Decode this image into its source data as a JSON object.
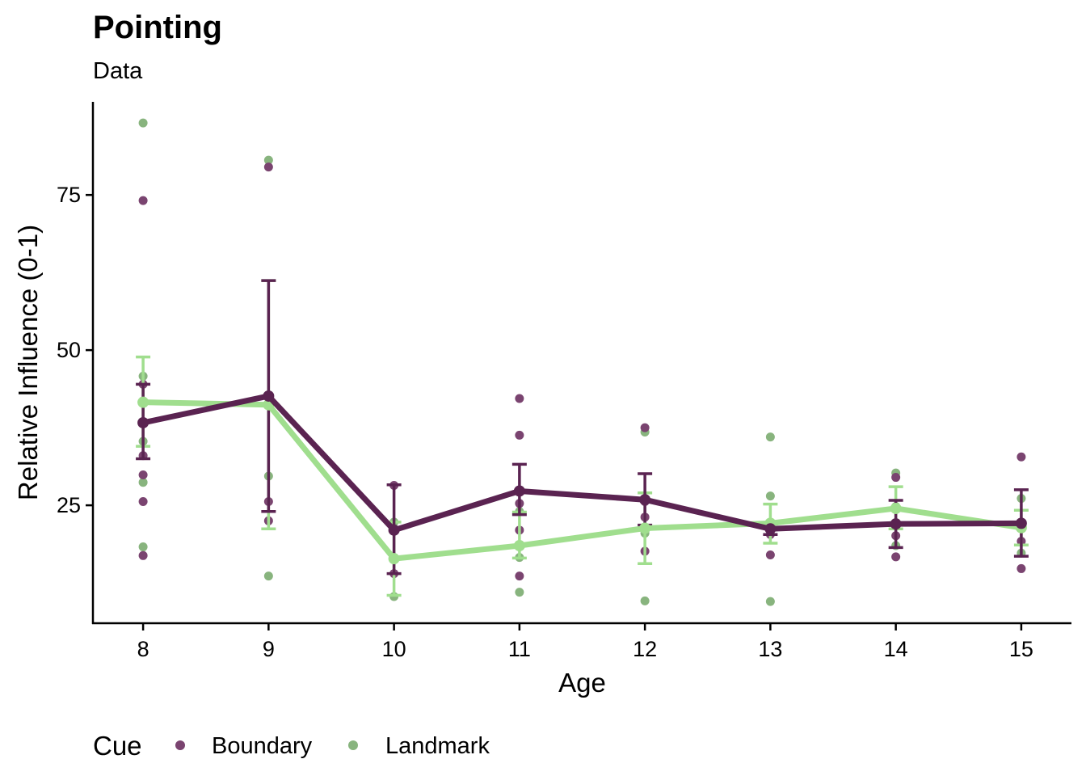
{
  "chart_data": {
    "type": "line",
    "title": "Pointing",
    "subtitle": "Data",
    "xlabel": "Age",
    "ylabel": "Relative Influence (0-1)",
    "x": [
      8,
      9,
      10,
      11,
      12,
      13,
      14,
      15
    ],
    "xlim": [
      7.6,
      15.4
    ],
    "ylim": [
      6,
      90
    ],
    "yticks": [
      25,
      50,
      75
    ],
    "grid": false,
    "legend": {
      "title": "Cue",
      "position": "bottom-left"
    },
    "series": [
      {
        "name": "Boundary",
        "color": "#5a2351",
        "point_color": "#7a4470",
        "mean": [
          38.3,
          42.6,
          21.0,
          27.3,
          25.9,
          21.2,
          22.0,
          22.1
        ],
        "error_low": [
          32.5,
          24.0,
          14.0,
          23.5,
          21.8,
          20.3,
          18.2,
          16.8
        ],
        "error_high": [
          44.5,
          61.2,
          28.3,
          31.6,
          30.1,
          22.0,
          25.8,
          27.5
        ],
        "points": [
          [
            8,
            74.1
          ],
          [
            8,
            44.5
          ],
          [
            8,
            41.8
          ],
          [
            8,
            33.0
          ],
          [
            8,
            29.9
          ],
          [
            8,
            25.6
          ],
          [
            8,
            16.9
          ],
          [
            9,
            79.5
          ],
          [
            9,
            25.6
          ],
          [
            9,
            22.5
          ],
          [
            10,
            28.2
          ],
          [
            10,
            14.0
          ],
          [
            11,
            42.2
          ],
          [
            11,
            36.3
          ],
          [
            11,
            25.3
          ],
          [
            11,
            21.0
          ],
          [
            11,
            13.6
          ],
          [
            12,
            37.5
          ],
          [
            12,
            25.6
          ],
          [
            12,
            23.1
          ],
          [
            12,
            17.6
          ],
          [
            13,
            21.4
          ],
          [
            13,
            20.3
          ],
          [
            13,
            17.0
          ],
          [
            14,
            29.5
          ],
          [
            14,
            20.1
          ],
          [
            14,
            16.7
          ],
          [
            15,
            32.8
          ],
          [
            15,
            19.2
          ],
          [
            15,
            14.8
          ]
        ]
      },
      {
        "name": "Landmark",
        "color": "#a0de8e",
        "point_color": "#88b47e",
        "mean": [
          41.6,
          41.2,
          16.4,
          18.5,
          21.3,
          22.1,
          24.5,
          21.4
        ],
        "error_low": [
          34.5,
          21.2,
          10.5,
          16.5,
          15.6,
          18.9,
          21.2,
          18.6
        ],
        "error_high": [
          48.9,
          61.2,
          22.3,
          23.9,
          27.0,
          25.2,
          28.0,
          24.2
        ],
        "points": [
          [
            8,
            86.6
          ],
          [
            8,
            45.8
          ],
          [
            8,
            35.3
          ],
          [
            8,
            28.7
          ],
          [
            8,
            18.3
          ],
          [
            9,
            80.6
          ],
          [
            9,
            29.7
          ],
          [
            9,
            13.6
          ],
          [
            10,
            22.3
          ],
          [
            10,
            10.3
          ],
          [
            11,
            24.0
          ],
          [
            11,
            16.6
          ],
          [
            11,
            11.0
          ],
          [
            12,
            36.8
          ],
          [
            12,
            20.5
          ],
          [
            12,
            9.6
          ],
          [
            13,
            36.0
          ],
          [
            13,
            26.5
          ],
          [
            13,
            9.5
          ],
          [
            14,
            30.2
          ],
          [
            14,
            24.8
          ],
          [
            14,
            18.5
          ],
          [
            15,
            26.1
          ],
          [
            15,
            21.4
          ],
          [
            15,
            17.3
          ]
        ]
      }
    ]
  }
}
